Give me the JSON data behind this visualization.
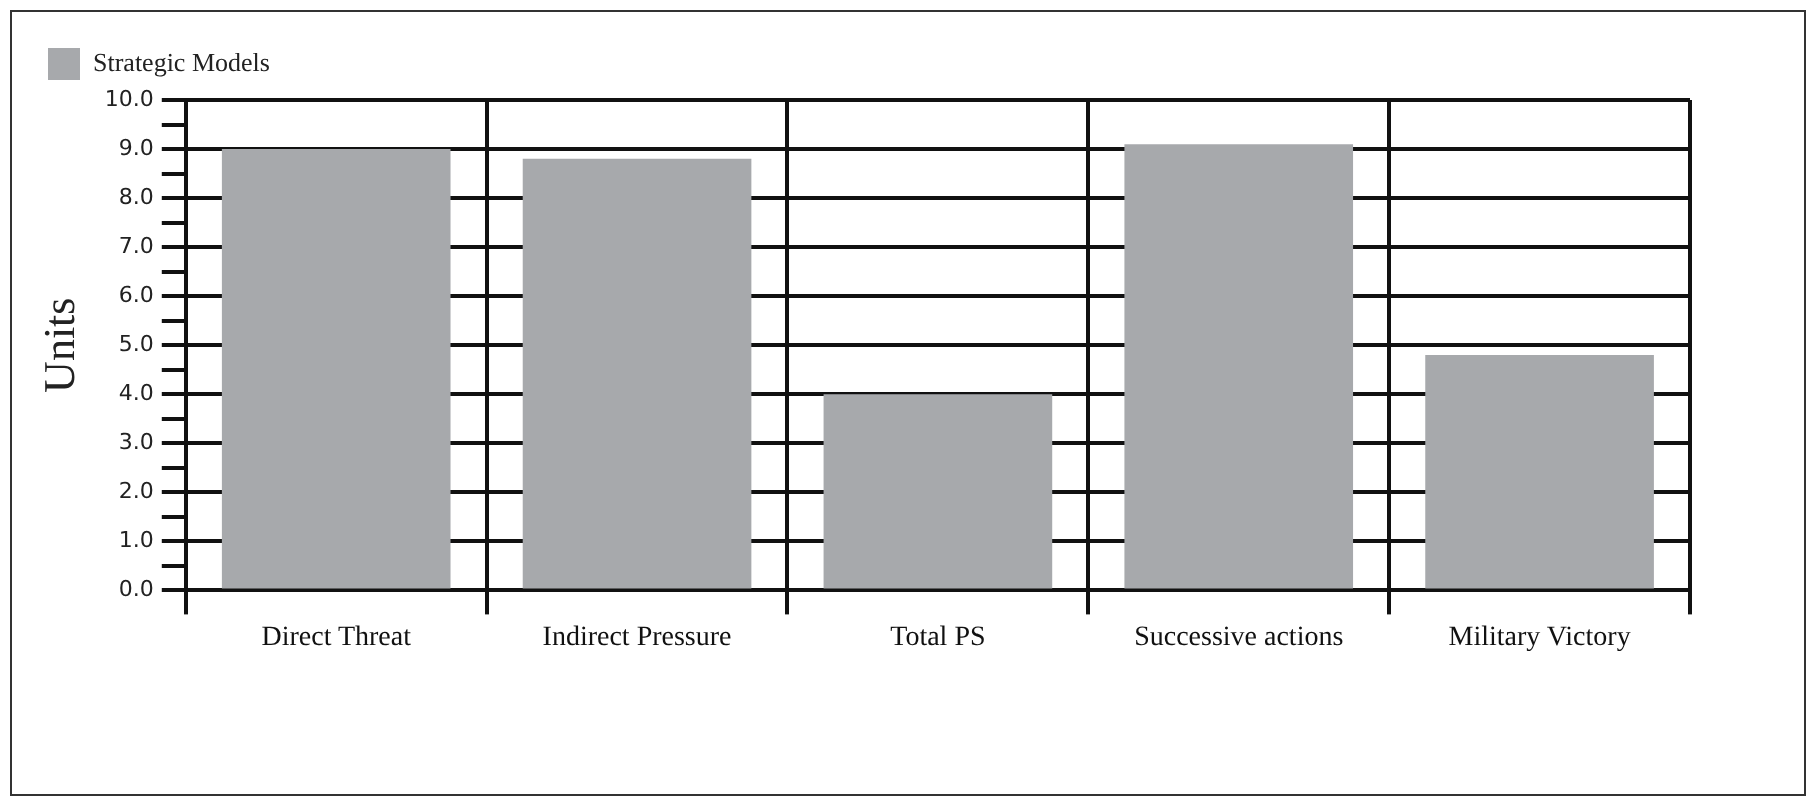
{
  "chart_data": {
    "type": "bar",
    "ylabel": "Units",
    "categories": [
      "Direct Threat",
      "Indirect Pressure",
      "Total PS",
      "Successive actions",
      "Military Victory"
    ],
    "series": [
      {
        "name": "Strategic Models",
        "color": "#a7a9ac",
        "values": [
          9.0,
          8.8,
          4.0,
          9.1,
          4.8
        ]
      }
    ],
    "ylim": [
      0,
      10
    ],
    "yticks": [
      {
        "value": 0,
        "label": "0.0"
      },
      {
        "value": 0.5,
        "label": null
      },
      {
        "value": 1,
        "label": "1.0"
      },
      {
        "value": 1.5,
        "label": null
      },
      {
        "value": 2,
        "label": "2.0"
      },
      {
        "value": 2.5,
        "label": null
      },
      {
        "value": 3,
        "label": "3.0"
      },
      {
        "value": 3.5,
        "label": null
      },
      {
        "value": 4,
        "label": "4.0"
      },
      {
        "value": 4.5,
        "label": null
      },
      {
        "value": 5,
        "label": "5.0"
      },
      {
        "value": 5.5,
        "label": null
      },
      {
        "value": 6,
        "label": "6.0"
      },
      {
        "value": 6.5,
        "label": null
      },
      {
        "value": 7,
        "label": "7.0"
      },
      {
        "value": 7.5,
        "label": null
      },
      {
        "value": 8,
        "label": "8.0"
      },
      {
        "value": 8.5,
        "label": null
      },
      {
        "value": 9,
        "label": "9.0"
      },
      {
        "value": 9.5,
        "label": null
      },
      {
        "value": 10,
        "label": "10.0"
      }
    ],
    "grid": true,
    "legend": "top left"
  }
}
